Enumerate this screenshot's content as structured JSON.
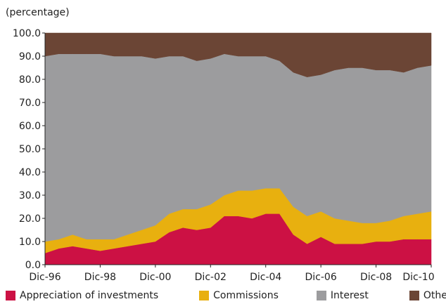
{
  "chart_data": {
    "type": "area",
    "stacked": true,
    "unit_label": "(percentage)",
    "y_ticks": [
      "0.0",
      "10.0",
      "20.0",
      "30.0",
      "40.0",
      "50.0",
      "60.0",
      "70.0",
      "80.0",
      "90.0",
      "100.0"
    ],
    "ylim": [
      0,
      100
    ],
    "x_ticks": [
      "Dic-96",
      "Dic-98",
      "Dic-00",
      "Dic-02",
      "Dic-04",
      "Dic-06",
      "Dic-08",
      "Dic-10"
    ],
    "x": [
      "Dic-96",
      "Jun-97",
      "Dic-97",
      "Jun-98",
      "Dic-98",
      "Jun-99",
      "Dic-99",
      "Jun-00",
      "Dic-00",
      "Jun-01",
      "Dic-01",
      "Jun-02",
      "Dic-02",
      "Jun-03",
      "Dic-03",
      "Jun-04",
      "Dic-04",
      "Jun-05",
      "Dic-05",
      "Jun-06",
      "Dic-06",
      "Jun-07",
      "Dic-07",
      "Jun-08",
      "Dic-08",
      "Jun-09",
      "Dic-09",
      "Jun-10",
      "Dic-10"
    ],
    "series": [
      {
        "name": "Appreciation of investments",
        "color": "#CC1144",
        "values": [
          5,
          7,
          8,
          7,
          6,
          7,
          8,
          9,
          10,
          14,
          16,
          15,
          16,
          21,
          21,
          20,
          22,
          22,
          13,
          9,
          12,
          9,
          9,
          9,
          10,
          10,
          11,
          11,
          11
        ]
      },
      {
        "name": "Commissions",
        "color": "#E8B00F",
        "values": [
          5,
          4,
          5,
          4,
          5,
          4,
          5,
          6,
          7,
          8,
          8,
          9,
          10,
          9,
          11,
          12,
          11,
          11,
          12,
          12,
          11,
          11,
          10,
          9,
          8,
          9,
          10,
          11,
          12
        ]
      },
      {
        "name": "Interest",
        "color": "#9C9C9E",
        "values": [
          80,
          80,
          78,
          80,
          80,
          79,
          77,
          75,
          72,
          68,
          66,
          64,
          63,
          61,
          58,
          58,
          57,
          55,
          58,
          60,
          59,
          64,
          66,
          67,
          66,
          65,
          62,
          63,
          63
        ]
      },
      {
        "name": "Other",
        "color": "#6B4535",
        "values": [
          10,
          9,
          9,
          9,
          9,
          10,
          10,
          10,
          11,
          10,
          10,
          12,
          11,
          9,
          10,
          10,
          10,
          12,
          17,
          19,
          18,
          16,
          15,
          15,
          16,
          16,
          17,
          15,
          14
        ]
      }
    ],
    "grid": false,
    "legend_position": "bottom"
  }
}
